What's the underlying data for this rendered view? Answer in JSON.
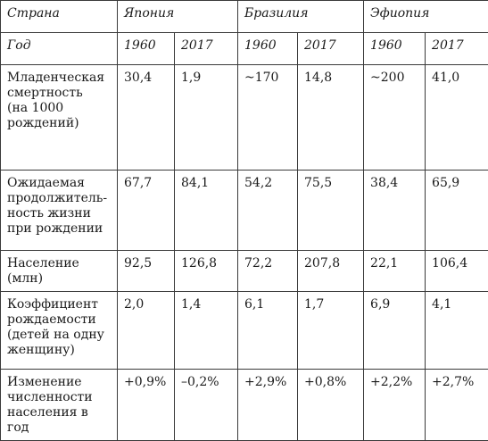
{
  "table": {
    "country_header": "Страна",
    "countries": [
      "Япония",
      "Бразилия",
      "Эфиопия"
    ],
    "year_header": "Год",
    "years": [
      "1960",
      "2017",
      "1960",
      "2017",
      "1960",
      "2017"
    ],
    "rows": [
      {
        "label": "Младенческая\nсмертность\n(на 1000\nрождений)",
        "values": [
          "30,4",
          "1,9",
          "~170",
          "14,8",
          "~200",
          "41,0"
        ]
      },
      {
        "label": "Ожидаемая\nпродолжитель-\nность жизни\nпри рождении",
        "values": [
          "67,7",
          "84,1",
          "54,2",
          "75,5",
          "38,4",
          "65,9"
        ]
      },
      {
        "label": "Население (млн)",
        "values": [
          "92,5",
          "126,8",
          "72,2",
          "207,8",
          "22,1",
          "106,4"
        ]
      },
      {
        "label": "Коэффициент\nрождаемости\n(детей на одну\nженщину)",
        "values": [
          "2,0",
          "1,4",
          "6,1",
          "1,7",
          "6,9",
          "4,1"
        ]
      },
      {
        "label": "Изменение\nчисленности\nнаселения в год",
        "values": [
          "+0,9%",
          "–0,2%",
          "+2,9%",
          "+0,8%",
          "+2,2%",
          "+2,7%"
        ]
      }
    ]
  }
}
